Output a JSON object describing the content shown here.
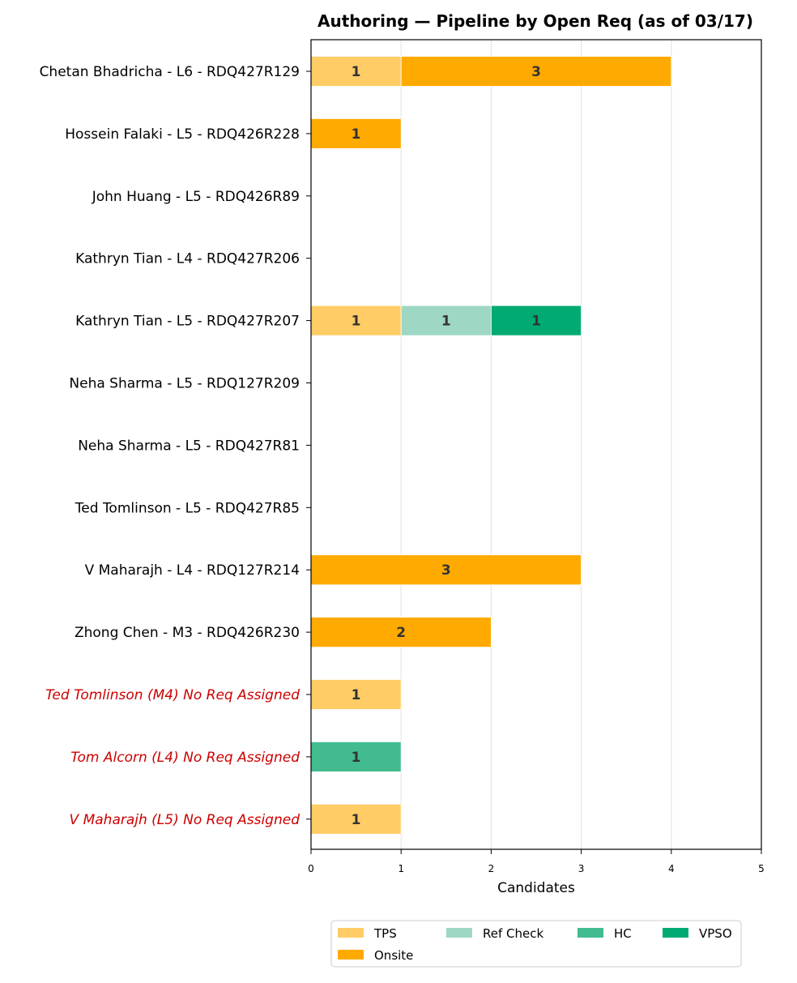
{
  "chart_data": {
    "type": "bar",
    "orientation": "horizontal",
    "stacked": true,
    "title": "Authoring — Pipeline by Open Req (as of 03/17)",
    "xlabel": "Candidates",
    "ylabel": "",
    "xlim": [
      0,
      5
    ],
    "xticks": [
      "0",
      "1",
      "2",
      "3",
      "4",
      "5"
    ],
    "grid": "vertical",
    "legend_position": "bottom",
    "categories": [
      "Chetan Bhadricha - L6 - RDQ427R129",
      "Hossein Falaki - L5 - RDQ426R228",
      "John Huang - L5 - RDQ426R89",
      "Kathryn Tian - L4 - RDQ427R206",
      "Kathryn Tian - L5 - RDQ427R207",
      "Neha Sharma - L5 - RDQ127R209",
      "Neha Sharma - L5 - RDQ427R81",
      "Ted Tomlinson - L5 - RDQ427R85",
      "V Maharajh - L4 - RDQ127R214",
      "Zhong Chen - M3 - RDQ426R230",
      "Ted Tomlinson (M4) No Req Assigned",
      "Tom Alcorn (L4) No Req Assigned",
      "V Maharajh (L5) No Req Assigned"
    ],
    "highlighted_categories": [
      "Ted Tomlinson (M4) No Req Assigned",
      "Tom Alcorn (L4) No Req Assigned",
      "V Maharajh (L5) No Req Assigned"
    ],
    "highlight_color": "#cc0000",
    "series": [
      {
        "name": "TPS",
        "color": "#ffcc66",
        "values": [
          1,
          0,
          0,
          0,
          1,
          0,
          0,
          0,
          0,
          0,
          1,
          0,
          1
        ]
      },
      {
        "name": "Onsite",
        "color": "#ffaa00",
        "values": [
          3,
          1,
          0,
          0,
          0,
          0,
          0,
          0,
          3,
          2,
          0,
          0,
          0
        ]
      },
      {
        "name": "Ref Check",
        "color": "#9ed7c4",
        "values": [
          0,
          0,
          0,
          0,
          1,
          0,
          0,
          0,
          0,
          0,
          0,
          0,
          0
        ]
      },
      {
        "name": "HC",
        "color": "#42bb8f",
        "values": [
          0,
          0,
          0,
          0,
          0,
          0,
          0,
          0,
          0,
          0,
          0,
          1,
          0
        ]
      },
      {
        "name": "VPSO",
        "color": "#00aa72",
        "values": [
          0,
          0,
          0,
          0,
          1,
          0,
          0,
          0,
          0,
          0,
          0,
          0,
          0
        ]
      }
    ]
  }
}
